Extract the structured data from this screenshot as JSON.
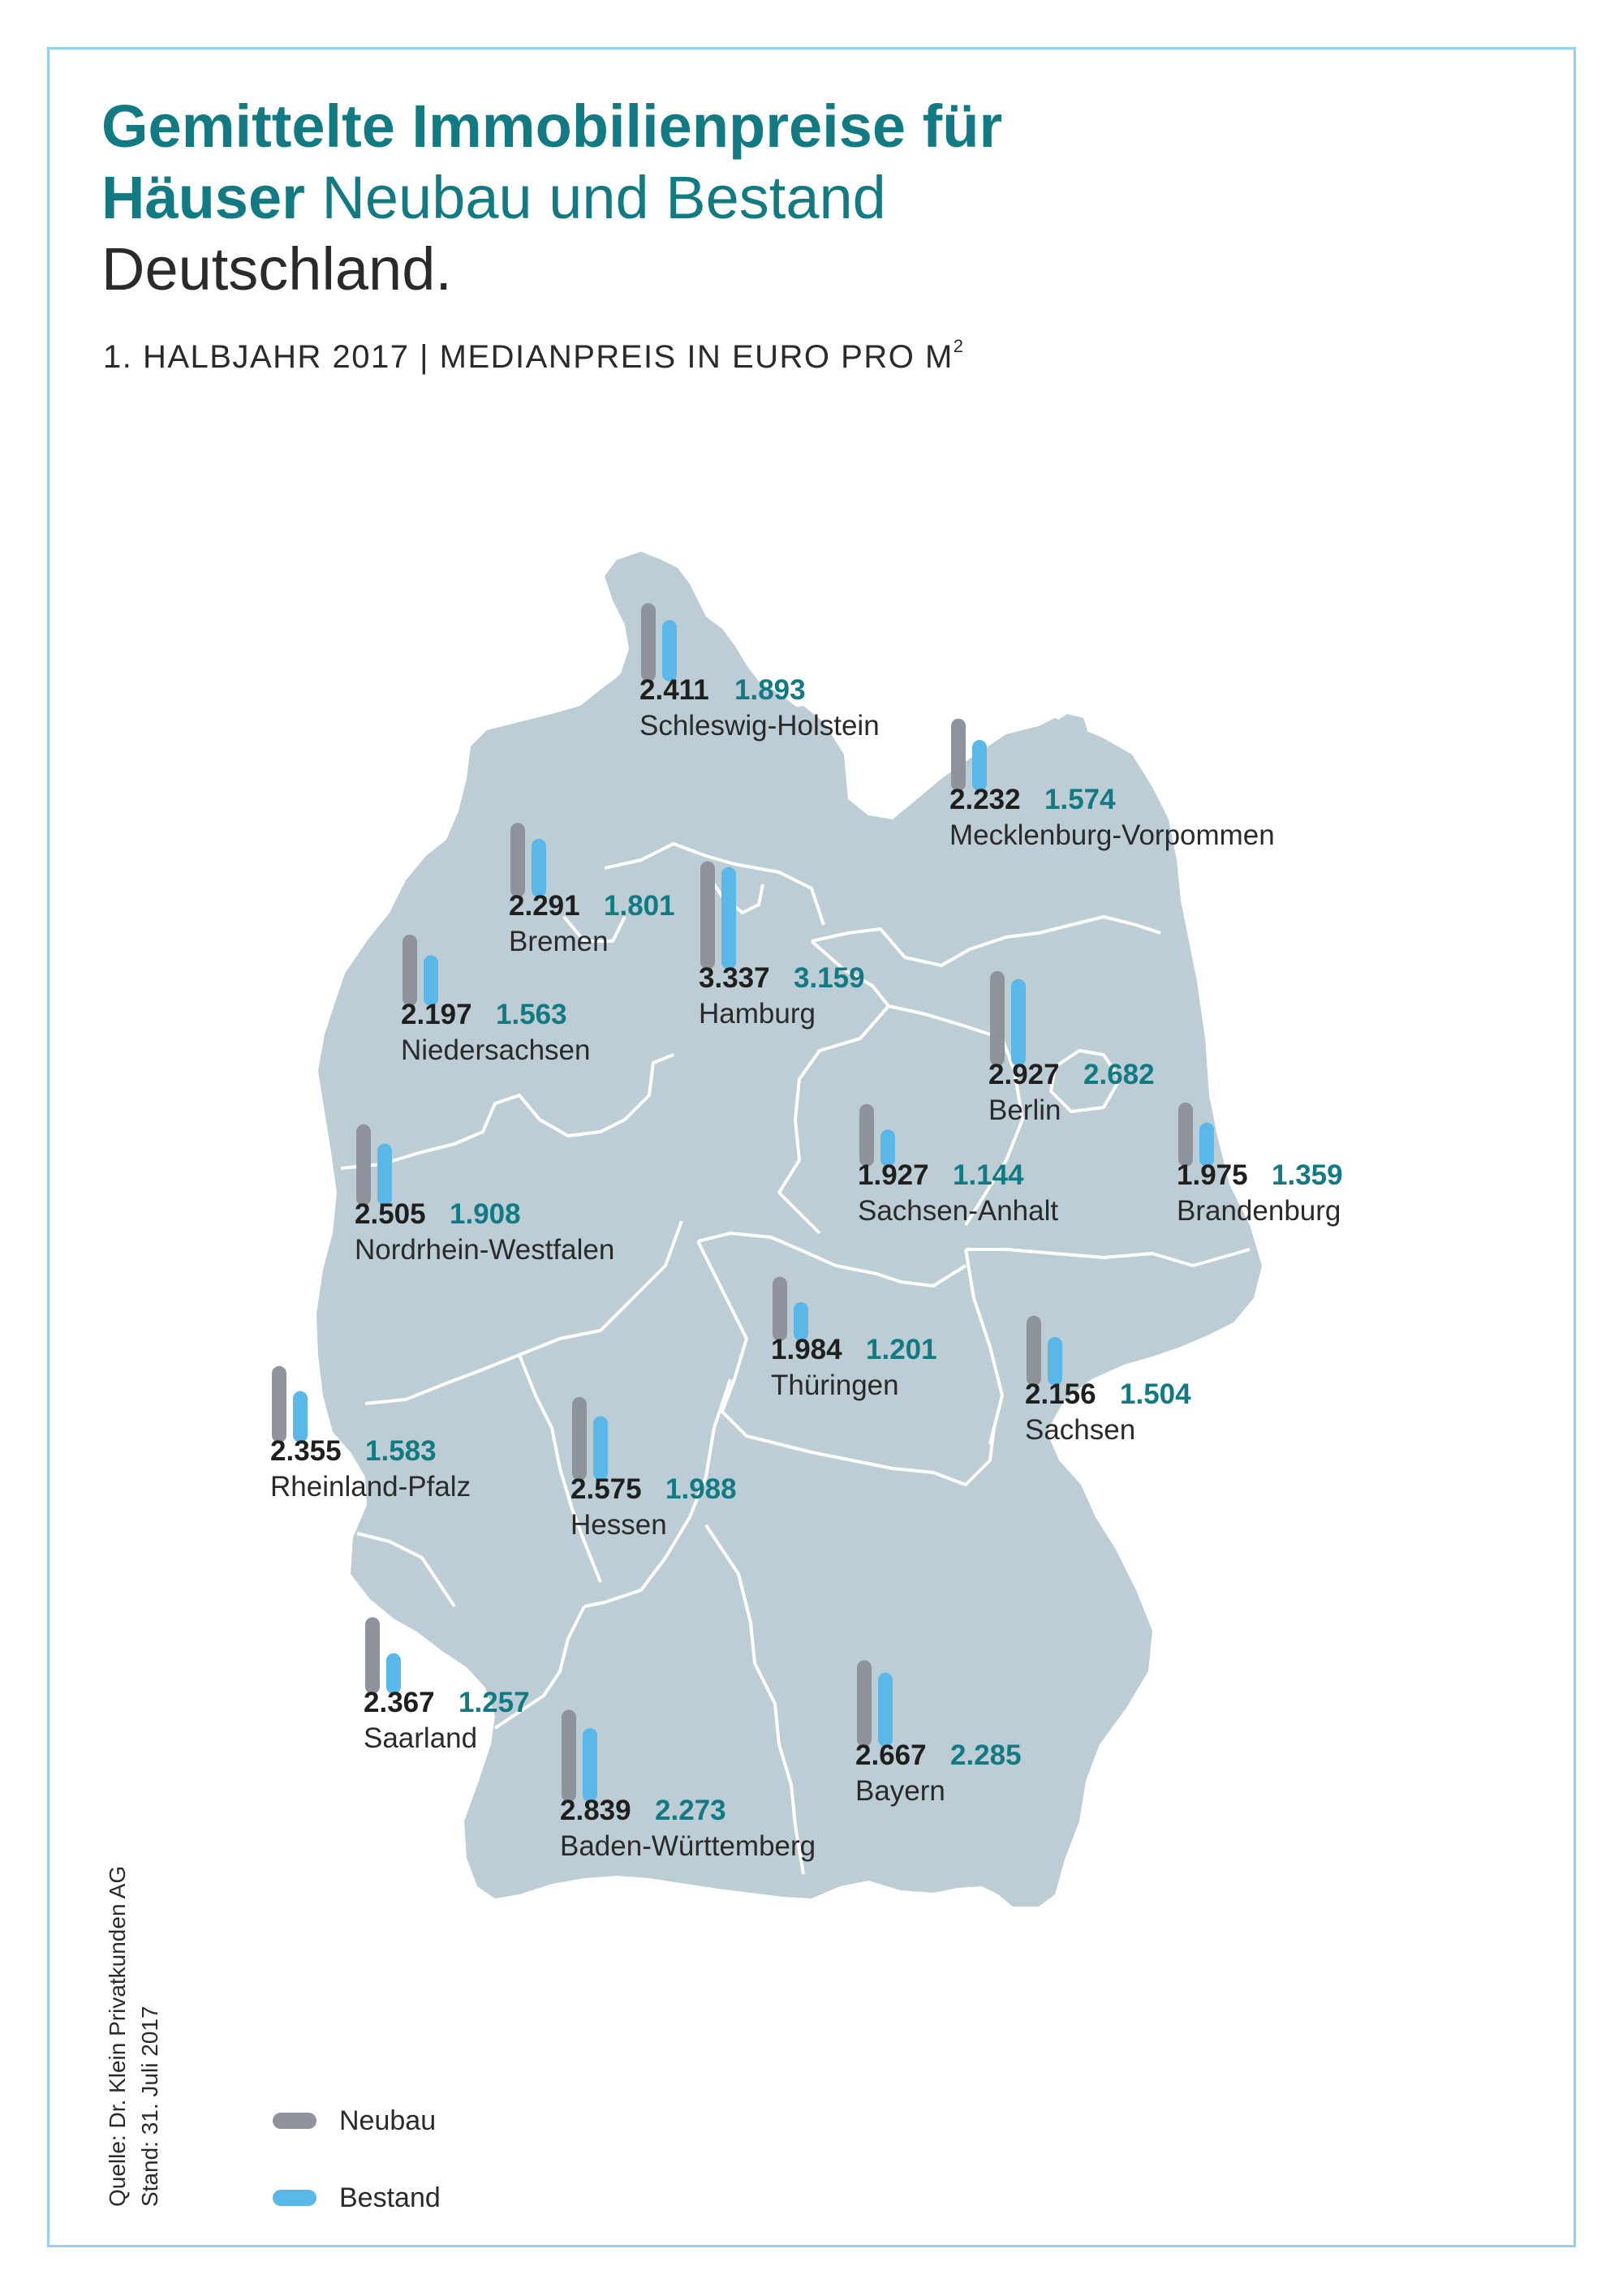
{
  "title": {
    "line1": "Gemittelte Immobilienpreise für",
    "line2_bold": "Häuser",
    "line2_rest": " Neubau und Bestand",
    "line3": "Deutschland."
  },
  "subtitle": {
    "text": "1. HALBJAHR 2017 | MEDIANPREIS IN EURO PRO M",
    "sup": "2"
  },
  "source": {
    "line1": "Quelle: Dr. Klein Privatkunden AG",
    "line2": "Stand: 31. Juli 2017"
  },
  "colors": {
    "neubau": "#8e939c",
    "bestand": "#5ab8e8",
    "map": "#bccdd5",
    "map_border": "#ffffff",
    "title": "#127a82"
  },
  "legend": {
    "neubau": "Neubau",
    "bestand": "Bestand"
  },
  "chart_data": {
    "type": "bar",
    "categories": [
      "Schleswig-Holstein",
      "Mecklenburg-Vorpommen",
      "Bremen",
      "Hamburg",
      "Niedersachsen",
      "Berlin",
      "Sachsen-Anhalt",
      "Brandenburg",
      "Nordrhein-Westfalen",
      "Thüringen",
      "Sachsen",
      "Rheinland-Pfalz",
      "Hessen",
      "Saarland",
      "Bayern",
      "Baden-Württemberg"
    ],
    "series": [
      {
        "name": "Neubau",
        "values": [
          2411,
          2232,
          2291,
          3337,
          2197,
          2927,
          1927,
          1975,
          2505,
          1984,
          2156,
          2355,
          2575,
          2367,
          2667,
          2839
        ]
      },
      {
        "name": "Bestand",
        "values": [
          1893,
          1574,
          1801,
          3159,
          1563,
          2682,
          1144,
          1359,
          1908,
          1201,
          1504,
          1583,
          1988,
          1257,
          2285,
          2273
        ]
      }
    ],
    "value_labels": {
      "neubau": [
        "2.411",
        "2.232",
        "2.291",
        "3.337",
        "2.197",
        "2.927",
        "1.927",
        "1.975",
        "2.505",
        "1.984",
        "2.156",
        "2.355",
        "2.575",
        "2.367",
        "2.667",
        "2.839"
      ],
      "bestand": [
        "1.893",
        "1.574",
        "1.801",
        "3.159",
        "1.563",
        "2.682",
        "1.144",
        "1.359",
        "1.908",
        "1.201",
        "1.504",
        "1.583",
        "1.988",
        "1.257",
        "2.285",
        "2.273"
      ]
    },
    "title": "Gemittelte Immobilienpreise für Häuser Neubau und Bestand Deutschland.",
    "ylabel": "",
    "legend": "bottom-left"
  }
}
